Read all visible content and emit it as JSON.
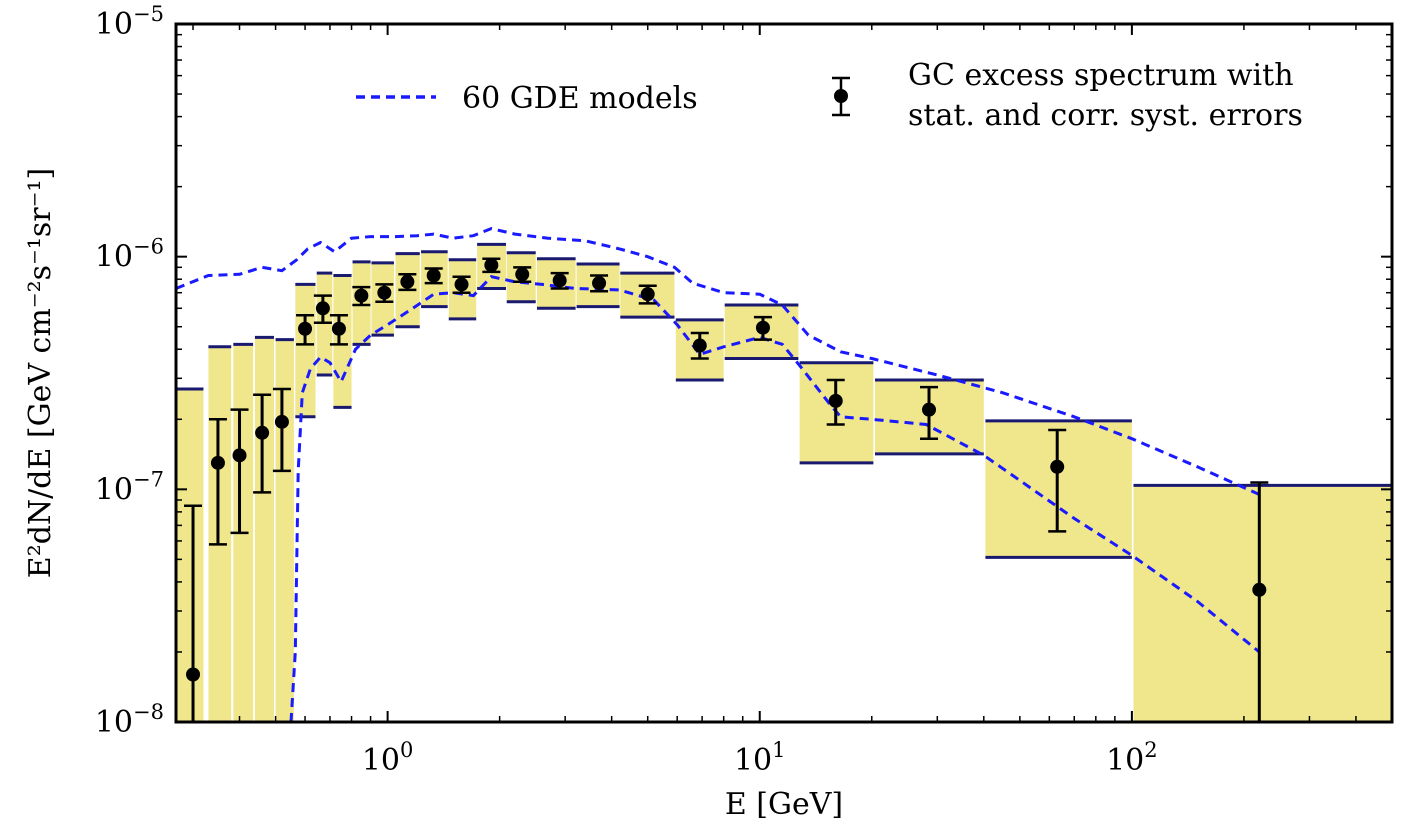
{
  "chart_data": {
    "type": "scatter",
    "x_scale": "log",
    "y_scale": "log",
    "xlim": [
      0.27,
      500
    ],
    "ylim": [
      1e-08,
      1e-05
    ],
    "xlabel": "E [GeV]",
    "ylabel": "E²dN/dE [GeV cm⁻²s⁻¹sr⁻¹]",
    "x_ticks": [
      {
        "value": 1,
        "base": "10",
        "exp": "0"
      },
      {
        "value": 10,
        "base": "10",
        "exp": "1"
      },
      {
        "value": 100,
        "base": "10",
        "exp": "2"
      }
    ],
    "y_ticks": [
      {
        "value": 1e-08,
        "base": "10",
        "exp": "−8"
      },
      {
        "value": 1e-07,
        "base": "10",
        "exp": "−7"
      },
      {
        "value": 1e-06,
        "base": "10",
        "exp": "−6"
      },
      {
        "value": 1e-05,
        "base": "10",
        "exp": "−5"
      }
    ],
    "legend": {
      "position": "top",
      "entries": [
        {
          "label": "60 GDE models",
          "style": "dashed-line",
          "color": "#1a1aff"
        },
        {
          "label_lines": [
            "GC excess spectrum with",
            "stat. and corr. syst. errors"
          ],
          "style": "errorbar-point",
          "color": "#000000"
        }
      ]
    },
    "colors": {
      "band_fill": "#f0e68c",
      "band_edge": "#191970",
      "model_line": "#1a1aff",
      "points": "#000000"
    },
    "excess_spectrum": [
      {
        "x": 0.3,
        "y": 1.6e-08,
        "ylo": 1e-08,
        "yhi": 8.5e-08,
        "xlo": 0.27,
        "xhi": 0.32,
        "band_lo": 1e-08,
        "band_hi": 2.7e-07
      },
      {
        "x": 0.35,
        "y": 1.3e-07,
        "ylo": 5.8e-08,
        "yhi": 2e-07,
        "xlo": 0.33,
        "xhi": 0.38,
        "band_lo": 1e-08,
        "band_hi": 4.1e-07
      },
      {
        "x": 0.4,
        "y": 1.4e-07,
        "ylo": 6.5e-08,
        "yhi": 2.2e-07,
        "xlo": 0.385,
        "xhi": 0.435,
        "band_lo": 1e-08,
        "band_hi": 4.2e-07
      },
      {
        "x": 0.46,
        "y": 1.75e-07,
        "ylo": 9.7e-08,
        "yhi": 2.55e-07,
        "xlo": 0.44,
        "xhi": 0.495,
        "band_lo": 1e-08,
        "band_hi": 4.5e-07
      },
      {
        "x": 0.52,
        "y": 1.95e-07,
        "ylo": 1.2e-07,
        "yhi": 2.7e-07,
        "xlo": 0.5,
        "xhi": 0.56,
        "band_lo": 1e-08,
        "band_hi": 4.4e-07
      },
      {
        "x": 0.6,
        "y": 4.9e-07,
        "ylo": 4.2e-07,
        "yhi": 5.6e-07,
        "xlo": 0.565,
        "xhi": 0.64,
        "band_lo": 2.05e-07,
        "band_hi": 7.6e-07
      },
      {
        "x": 0.67,
        "y": 6e-07,
        "ylo": 5.2e-07,
        "yhi": 6.8e-07,
        "xlo": 0.645,
        "xhi": 0.71,
        "band_lo": 3.1e-07,
        "band_hi": 8.5e-07
      },
      {
        "x": 0.74,
        "y": 4.9e-07,
        "ylo": 4.2e-07,
        "yhi": 5.6e-07,
        "xlo": 0.715,
        "xhi": 0.8,
        "band_lo": 2.25e-07,
        "band_hi": 8.3e-07
      },
      {
        "x": 0.85,
        "y": 6.8e-07,
        "ylo": 6.2e-07,
        "yhi": 7.4e-07,
        "xlo": 0.805,
        "xhi": 0.9,
        "band_lo": 4.2e-07,
        "band_hi": 9.5e-07
      },
      {
        "x": 0.98,
        "y": 7e-07,
        "ylo": 6.4e-07,
        "yhi": 7.6e-07,
        "xlo": 0.905,
        "xhi": 1.04,
        "band_lo": 4.6e-07,
        "band_hi": 9.4e-07
      },
      {
        "x": 1.13,
        "y": 7.8e-07,
        "ylo": 7.2e-07,
        "yhi": 8.4e-07,
        "xlo": 1.05,
        "xhi": 1.22,
        "band_lo": 5e-07,
        "band_hi": 1.03e-06
      },
      {
        "x": 1.33,
        "y": 8.3e-07,
        "ylo": 7.7e-07,
        "yhi": 8.9e-07,
        "xlo": 1.23,
        "xhi": 1.45,
        "band_lo": 6.1e-07,
        "band_hi": 1.05e-06
      },
      {
        "x": 1.58,
        "y": 7.6e-07,
        "ylo": 7e-07,
        "yhi": 8.2e-07,
        "xlo": 1.46,
        "xhi": 1.73,
        "band_lo": 5.4e-07,
        "band_hi": 9.7e-07
      },
      {
        "x": 1.9,
        "y": 9.2e-07,
        "ylo": 8.6e-07,
        "yhi": 9.8e-07,
        "xlo": 1.74,
        "xhi": 2.08,
        "band_lo": 7.3e-07,
        "band_hi": 1.13e-06
      },
      {
        "x": 2.3,
        "y": 8.4e-07,
        "ylo": 7.8e-07,
        "yhi": 9e-07,
        "xlo": 2.09,
        "xhi": 2.5,
        "band_lo": 6.4e-07,
        "band_hi": 1.04e-06
      },
      {
        "x": 2.9,
        "y": 7.9e-07,
        "ylo": 7.3e-07,
        "yhi": 8.5e-07,
        "xlo": 2.52,
        "xhi": 3.2,
        "band_lo": 6e-07,
        "band_hi": 9.8e-07
      },
      {
        "x": 3.7,
        "y": 7.7e-07,
        "ylo": 7.1e-07,
        "yhi": 8.3e-07,
        "xlo": 3.22,
        "xhi": 4.2,
        "band_lo": 6.1e-07,
        "band_hi": 9.3e-07
      },
      {
        "x": 5.0,
        "y": 6.9e-07,
        "ylo": 6.3e-07,
        "yhi": 7.5e-07,
        "xlo": 4.22,
        "xhi": 5.9,
        "band_lo": 5.5e-07,
        "band_hi": 8.5e-07
      },
      {
        "x": 6.9,
        "y": 4.15e-07,
        "ylo": 3.65e-07,
        "yhi": 4.7e-07,
        "xlo": 5.95,
        "xhi": 8.0,
        "band_lo": 2.95e-07,
        "band_hi": 5.35e-07
      },
      {
        "x": 10.2,
        "y": 4.95e-07,
        "ylo": 4.4e-07,
        "yhi": 5.5e-07,
        "xlo": 8.05,
        "xhi": 12.7,
        "band_lo": 3.65e-07,
        "band_hi": 6.2e-07
      },
      {
        "x": 16.0,
        "y": 2.4e-07,
        "ylo": 1.9e-07,
        "yhi": 2.95e-07,
        "xlo": 12.8,
        "xhi": 20.2,
        "band_lo": 1.3e-07,
        "band_hi": 3.5e-07
      },
      {
        "x": 28.5,
        "y": 2.2e-07,
        "ylo": 1.65e-07,
        "yhi": 2.75e-07,
        "xlo": 20.4,
        "xhi": 40.0,
        "band_lo": 1.42e-07,
        "band_hi": 2.95e-07
      },
      {
        "x": 63.0,
        "y": 1.25e-07,
        "ylo": 6.6e-08,
        "yhi": 1.8e-07,
        "xlo": 40.4,
        "xhi": 100.0,
        "band_lo": 5.1e-08,
        "band_hi": 1.97e-07
      },
      {
        "x": 220.0,
        "y": 3.7e-08,
        "ylo": 1e-08,
        "yhi": 1.07e-07,
        "xlo": 101.0,
        "xhi": 500.0,
        "band_lo": 1e-08,
        "band_hi": 1.04e-07
      }
    ],
    "gde_upper": {
      "x": [
        0.27,
        0.33,
        0.4,
        0.46,
        0.52,
        0.57,
        0.61,
        0.66,
        0.72,
        0.8,
        0.9,
        1.05,
        1.2,
        1.33,
        1.5,
        1.7,
        1.9,
        2.2,
        2.7,
        3.4,
        4.2,
        5.0,
        5.9,
        6.6,
        8.0,
        10.0,
        11.5,
        13.5,
        16.5,
        20.0,
        30.0,
        45.0,
        70.0,
        100.0,
        150.0,
        220.0
      ],
      "y": [
        7.3e-07,
        8.3e-07,
        8.4e-07,
        9e-07,
        8.7e-07,
        9.7e-07,
        1.08e-06,
        1.15e-06,
        1.05e-06,
        1.2e-06,
        1.22e-06,
        1.22e-06,
        1.23e-06,
        1.25e-06,
        1.2e-06,
        1.23e-06,
        1.32e-06,
        1.25e-06,
        1.2e-06,
        1.17e-06,
        1.08e-06,
        1e-06,
        9e-07,
        7.7e-07,
        7e-07,
        6.9e-07,
        6.2e-07,
        4.6e-07,
        3.9e-07,
        3.65e-07,
        3.1e-07,
        2.6e-07,
        2.05e-07,
        1.65e-07,
        1.25e-07,
        9.5e-08
      ]
    },
    "gde_lower": {
      "x": [
        0.55,
        0.565,
        0.575,
        0.59,
        0.62,
        0.66,
        0.7,
        0.75,
        0.82,
        0.9,
        1.0,
        1.15,
        1.33,
        1.5,
        1.7,
        1.9,
        2.2,
        2.6,
        3.2,
        4.2,
        5.2,
        6.0,
        6.9,
        8.0,
        10.0,
        11.5,
        13.0,
        15.5,
        16.5,
        20.0,
        28.0,
        40.0,
        70.0,
        100.0,
        150.0,
        220.0
      ],
      "y": [
        1e-08,
        2e-08,
        1.2e-07,
        2.6e-07,
        3.3e-07,
        3.7e-07,
        3.5e-07,
        2.9e-07,
        4e-07,
        4.6e-07,
        5.1e-07,
        5.9e-07,
        6.9e-07,
        7e-07,
        6.8e-07,
        8.2e-07,
        7.8e-07,
        7.6e-07,
        7.3e-07,
        7.2e-07,
        6.5e-07,
        5.1e-07,
        3.8e-07,
        4.1e-07,
        4.5e-07,
        4.2e-07,
        3.3e-07,
        2.3e-07,
        2.05e-07,
        2e-07,
        1.9e-07,
        1.4e-07,
        7.5e-08,
        5.2e-08,
        3.3e-08,
        2e-08
      ]
    }
  }
}
